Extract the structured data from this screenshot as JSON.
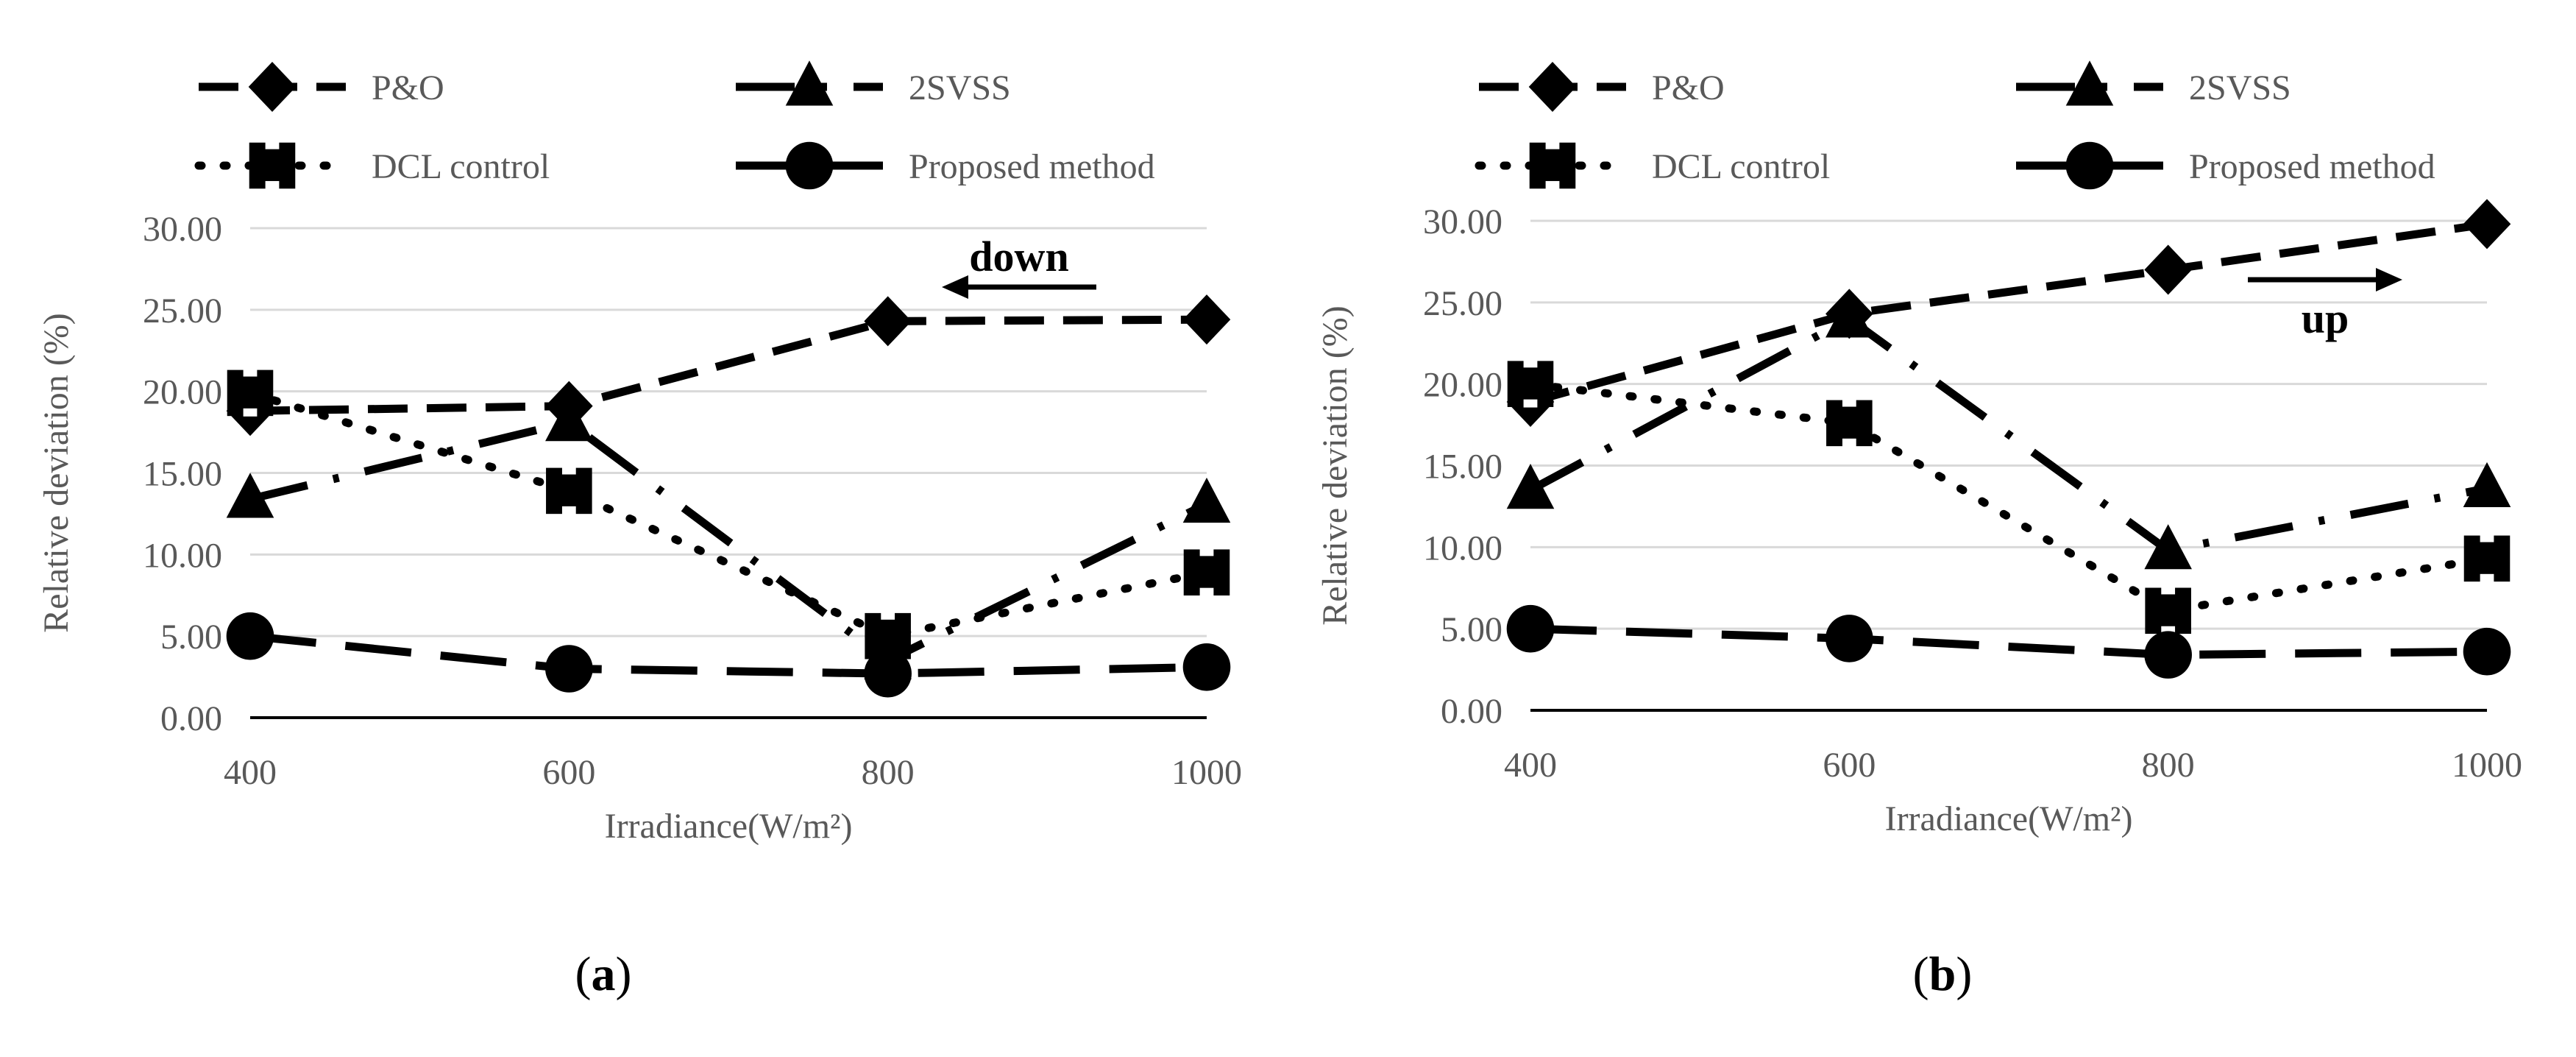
{
  "chart_data": [
    {
      "type": "line",
      "panel_label": "(a)",
      "xlabel": "Irradiance(W/m²)",
      "ylabel": "Relative deviation (%)",
      "x": [
        400,
        600,
        800,
        1000
      ],
      "xticks": [
        "400",
        "600",
        "800",
        "1000"
      ],
      "ylim": [
        0,
        30
      ],
      "yticks": [
        "0.00",
        "5.00",
        "10.00",
        "15.00",
        "20.00",
        "25.00",
        "30.00"
      ],
      "grid": true,
      "legend_position": "top",
      "annotation": {
        "text": "down",
        "arrow": "left"
      },
      "series": [
        {
          "name": "P&O",
          "marker": "diamond",
          "line": "dash",
          "values": [
            18.8,
            19.1,
            24.3,
            24.4
          ]
        },
        {
          "name": "2SVSS",
          "marker": "triangle",
          "line": "longdashdot",
          "values": [
            13.4,
            18.1,
            3.5,
            13.1
          ]
        },
        {
          "name": "DCL control",
          "marker": "square",
          "line": "dot",
          "values": [
            19.9,
            13.9,
            5.0,
            8.9
          ]
        },
        {
          "name": "Proposed method",
          "marker": "circle",
          "line": "longdash",
          "values": [
            5.0,
            3.0,
            2.7,
            3.1
          ]
        }
      ]
    },
    {
      "type": "line",
      "panel_label": "(b)",
      "xlabel": "Irradiance(W/m²)",
      "ylabel": "Relative deviation (%)",
      "x": [
        400,
        600,
        800,
        1000
      ],
      "xticks": [
        "400",
        "600",
        "800",
        "1000"
      ],
      "ylim": [
        0,
        30
      ],
      "yticks": [
        "0.00",
        "5.00",
        "10.00",
        "15.00",
        "20.00",
        "25.00",
        "30.00"
      ],
      "grid": true,
      "legend_position": "top",
      "annotation": {
        "text": "up",
        "arrow": "right"
      },
      "series": [
        {
          "name": "P&O",
          "marker": "diamond",
          "line": "dash",
          "values": [
            18.9,
            24.3,
            27.0,
            29.8
          ]
        },
        {
          "name": "2SVSS",
          "marker": "triangle",
          "line": "longdashdot",
          "values": [
            13.5,
            24.0,
            9.8,
            13.6
          ]
        },
        {
          "name": "DCL control",
          "marker": "square",
          "line": "dot",
          "values": [
            20.0,
            17.6,
            6.1,
            9.3
          ]
        },
        {
          "name": "Proposed method",
          "marker": "circle",
          "line": "longdash",
          "values": [
            5.0,
            4.4,
            3.4,
            3.6
          ]
        }
      ]
    }
  ]
}
